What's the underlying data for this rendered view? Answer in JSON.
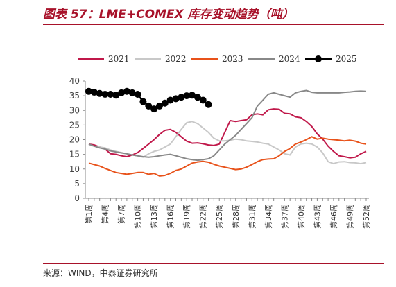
{
  "header": {
    "title": "图表 57：LME+COMEX 库存变动趋势（吨）"
  },
  "footer": {
    "source": "来源：WIND，中泰证券研究所"
  },
  "colors": {
    "accent": "#a8122a"
  },
  "chart_data": {
    "type": "line",
    "title": "",
    "xlabel": "",
    "ylabel": "",
    "ylim": [
      0,
      40
    ],
    "yticks": [
      0,
      5,
      10,
      15,
      20,
      25,
      30,
      35,
      40
    ],
    "grid": false,
    "legend_position": "top",
    "x": [
      "第1周",
      "第2周",
      "第3周",
      "第4周",
      "第5周",
      "第6周",
      "第7周",
      "第8周",
      "第9周",
      "第10周",
      "第11周",
      "第12周",
      "第13周",
      "第14周",
      "第15周",
      "第16周",
      "第17周",
      "第18周",
      "第19周",
      "第20周",
      "第21周",
      "第22周",
      "第23周",
      "第24周",
      "第25周",
      "第26周",
      "第27周",
      "第28周",
      "第29周",
      "第30周",
      "第31周",
      "第32周",
      "第33周",
      "第34周",
      "第35周",
      "第36周",
      "第37周",
      "第38周",
      "第39周",
      "第40周",
      "第41周",
      "第42周",
      "第43周",
      "第44周",
      "第45周",
      "第46周",
      "第47周",
      "第48周",
      "第49周",
      "第50周",
      "第51周",
      "第52周"
    ],
    "x_tick_labels": [
      "第1周",
      "第4周",
      "第7周",
      "第10周",
      "第13周",
      "第16周",
      "第19周",
      "第22周",
      "第25周",
      "第28周",
      "第31周",
      "第34周",
      "第37周",
      "第40周",
      "第43周",
      "第46周",
      "第49周",
      "第52周"
    ],
    "series": [
      {
        "name": "2021",
        "color": "#c0184a",
        "marker": false,
        "values": [
          18.5,
          18.2,
          17.5,
          16.8,
          15.2,
          15.0,
          14.5,
          14.2,
          14.8,
          15.6,
          17.0,
          18.5,
          20.0,
          21.8,
          23.2,
          23.5,
          22.5,
          21.0,
          19.5,
          18.8,
          18.9,
          18.6,
          18.2,
          18.0,
          18.5,
          22.5,
          26.5,
          26.2,
          26.5,
          26.8,
          28.5,
          28.8,
          28.5,
          30.2,
          30.5,
          30.4,
          29.0,
          28.8,
          27.8,
          27.5,
          26.2,
          24.5,
          22.0,
          20.2,
          17.8,
          16.0,
          14.5,
          14.2,
          13.8,
          14.0,
          15.2,
          16.0
        ]
      },
      {
        "name": "2022",
        "color": "#c8c8c8",
        "marker": false,
        "values": [
          18.2,
          17.8,
          17.5,
          17.2,
          16.5,
          16.0,
          15.6,
          15.2,
          14.8,
          14.5,
          14.0,
          15.2,
          16.0,
          16.5,
          17.5,
          18.5,
          21.0,
          23.5,
          25.8,
          26.2,
          25.5,
          24.0,
          22.5,
          20.5,
          19.6,
          19.6,
          19.8,
          20.2,
          20.0,
          19.6,
          19.4,
          19.2,
          18.8,
          18.5,
          17.5,
          16.5,
          15.2,
          14.8,
          17.5,
          18.5,
          18.8,
          18.5,
          17.5,
          15.5,
          12.5,
          11.8,
          12.4,
          12.5,
          12.2,
          12.1,
          11.8,
          12.2
        ]
      },
      {
        "name": "2023",
        "color": "#e8521a",
        "marker": false,
        "values": [
          12.0,
          11.5,
          11.0,
          10.2,
          9.5,
          8.8,
          8.5,
          8.2,
          8.5,
          8.8,
          8.8,
          8.2,
          8.5,
          7.6,
          7.8,
          8.5,
          9.5,
          10.0,
          11.0,
          12.0,
          12.4,
          12.6,
          12.3,
          11.6,
          11.0,
          10.6,
          10.2,
          9.8,
          10.0,
          10.6,
          11.5,
          12.5,
          13.2,
          13.4,
          13.5,
          14.5,
          16.0,
          17.0,
          18.5,
          19.2,
          20.0,
          21.0,
          20.2,
          20.5,
          20.2,
          20.0,
          19.8,
          19.6,
          19.8,
          19.5,
          18.8,
          18.5
        ]
      },
      {
        "name": "2024",
        "color": "#888888",
        "marker": false,
        "values": [
          18.5,
          17.8,
          17.2,
          16.8,
          16.2,
          15.8,
          15.5,
          15.2,
          14.8,
          14.5,
          14.2,
          14.0,
          14.2,
          14.5,
          14.8,
          15.0,
          14.5,
          14.0,
          13.5,
          13.2,
          13.0,
          13.2,
          13.5,
          14.5,
          16.5,
          18.5,
          20.0,
          21.5,
          23.5,
          25.5,
          27.5,
          31.5,
          33.5,
          35.5,
          36.0,
          35.5,
          35.0,
          34.5,
          36.0,
          36.5,
          36.8,
          36.2,
          36.0,
          36.0,
          36.0,
          36.0,
          36.0,
          36.2,
          36.3,
          36.5,
          36.6,
          36.5
        ]
      },
      {
        "name": "2025",
        "color": "#000000",
        "marker": true,
        "values": [
          36.5,
          36.2,
          35.8,
          35.5,
          35.5,
          35.2,
          36.0,
          36.5,
          36.0,
          35.5,
          33.0,
          31.5,
          30.5,
          31.5,
          32.5,
          33.5,
          34.0,
          34.5,
          35.0,
          35.2,
          34.5,
          33.5,
          32.0,
          null,
          null,
          null,
          null,
          null,
          null,
          null,
          null,
          null,
          null,
          null,
          null,
          null,
          null,
          null,
          null,
          null,
          null,
          null,
          null,
          null,
          null,
          null,
          null,
          null,
          null,
          null,
          null,
          null
        ]
      }
    ]
  }
}
